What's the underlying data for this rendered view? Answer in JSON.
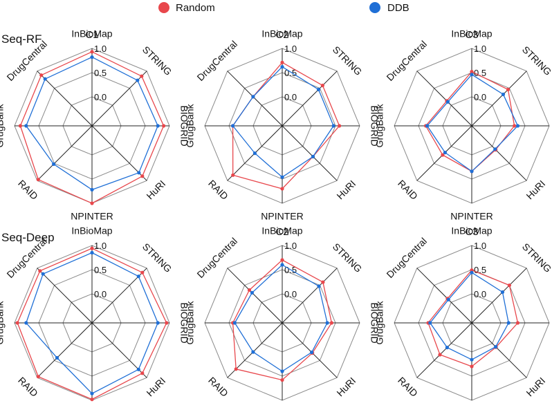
{
  "legend": [
    {
      "label": "Random",
      "color": "#e8474c"
    },
    {
      "label": "DDB",
      "color": "#1f6fd6"
    }
  ],
  "row_labels": [
    "Seq-RF",
    "Seq-Deep"
  ],
  "chart_data": [
    {
      "type": "radar",
      "row": "Seq-RF",
      "title": "C1",
      "axes": [
        "InBioMap",
        "STRING",
        "BIOGRID",
        "HuRI",
        "NPINTER",
        "RAID",
        "GrugBank",
        "DrugCentral"
      ],
      "ticks": [
        "0.0",
        "0.5",
        "1.0"
      ],
      "rmin": -0.6,
      "rmax": 1.0,
      "series": [
        {
          "name": "Random",
          "values": [
            0.93,
            0.85,
            0.88,
            0.87,
            1.0,
            0.97,
            0.88,
            0.88
          ]
        },
        {
          "name": "DDB",
          "values": [
            0.82,
            0.73,
            0.76,
            0.77,
            0.72,
            0.52,
            0.76,
            0.77
          ]
        }
      ]
    },
    {
      "type": "radar",
      "row": "Seq-RF",
      "title": "C2",
      "axes": [
        "InBioMap",
        "STRING",
        "BIOGRID",
        "HuRI",
        "NPINTER",
        "RAID",
        "GrugBank",
        "DrugCentral"
      ],
      "ticks": [
        "0.0",
        "0.5",
        "1.0"
      ],
      "rmin": -0.6,
      "rmax": 1.0,
      "series": [
        {
          "name": "Random",
          "values": [
            0.71,
            0.58,
            0.58,
            0.3,
            0.7,
            0.84,
            0.42,
            0.25
          ]
        },
        {
          "name": "DDB",
          "values": [
            0.62,
            0.46,
            0.46,
            0.3,
            0.46,
            0.2,
            0.42,
            0.25
          ]
        }
      ]
    },
    {
      "type": "radar",
      "row": "Seq-RF",
      "title": "C3",
      "axes": [
        "InBioMap",
        "STRING",
        "BIOGRID",
        "HuRI",
        "NPINTER",
        "RAID",
        "GrugBank",
        "DrugCentral"
      ],
      "ticks": [
        "0.0",
        "0.5",
        "1.0"
      ],
      "rmin": -0.6,
      "rmax": 1.0,
      "series": [
        {
          "name": "Random",
          "values": [
            0.52,
            0.46,
            0.28,
            0.1,
            0.34,
            0.25,
            0.35,
            0.13
          ]
        },
        {
          "name": "DDB",
          "values": [
            0.46,
            0.32,
            0.35,
            0.08,
            0.34,
            0.18,
            0.32,
            0.1
          ]
        }
      ]
    },
    {
      "type": "radar",
      "row": "Seq-Deep",
      "title": "",
      "axes": [
        "InBioMap",
        "STRING",
        "BIOGRID",
        "HuRI",
        "NPINTER",
        "RAID",
        "GrugBank",
        "DrugCentral"
      ],
      "ticks": [
        "0.0",
        "0.5",
        "1.0"
      ],
      "rmin": -0.6,
      "rmax": 1.0,
      "series": [
        {
          "name": "Random",
          "values": [
            0.94,
            0.87,
            0.94,
            0.87,
            0.98,
            0.97,
            0.94,
            0.92
          ]
        },
        {
          "name": "DDB",
          "values": [
            0.85,
            0.76,
            0.76,
            0.76,
            0.86,
            0.42,
            0.76,
            0.83
          ]
        }
      ]
    },
    {
      "type": "radar",
      "row": "Seq-Deep",
      "title": "C2",
      "axes": [
        "InBioMap",
        "STRING",
        "BIOGRID",
        "HuRI",
        "NPINTER",
        "RAID",
        "GrugBank",
        "DrugCentral"
      ],
      "ticks": [
        "0.0",
        "0.5",
        "1.0"
      ],
      "rmin": -0.6,
      "rmax": 1.0,
      "series": [
        {
          "name": "Random",
          "values": [
            0.7,
            0.59,
            0.42,
            0.28,
            0.58,
            0.75,
            0.42,
            0.36
          ]
        },
        {
          "name": "DDB",
          "values": [
            0.6,
            0.47,
            0.33,
            0.26,
            0.4,
            0.25,
            0.38,
            0.28
          ]
        }
      ]
    },
    {
      "type": "radar",
      "row": "Seq-Deep",
      "title": "C3",
      "axes": [
        "InBioMap",
        "STRING",
        "BIOGRID",
        "HuRI",
        "NPINTER",
        "RAID",
        "GrugBank",
        "DrugCentral"
      ],
      "ticks": [
        "0.0",
        "0.5",
        "1.0"
      ],
      "rmin": -0.6,
      "rmax": 1.0,
      "series": [
        {
          "name": "Random",
          "values": [
            0.49,
            0.5,
            0.35,
            0.11,
            0.3,
            0.33,
            0.3,
            0.11
          ]
        },
        {
          "name": "DDB",
          "values": [
            0.44,
            0.3,
            0.16,
            0.1,
            0.16,
            0.12,
            0.26,
            0.08
          ]
        }
      ]
    }
  ]
}
